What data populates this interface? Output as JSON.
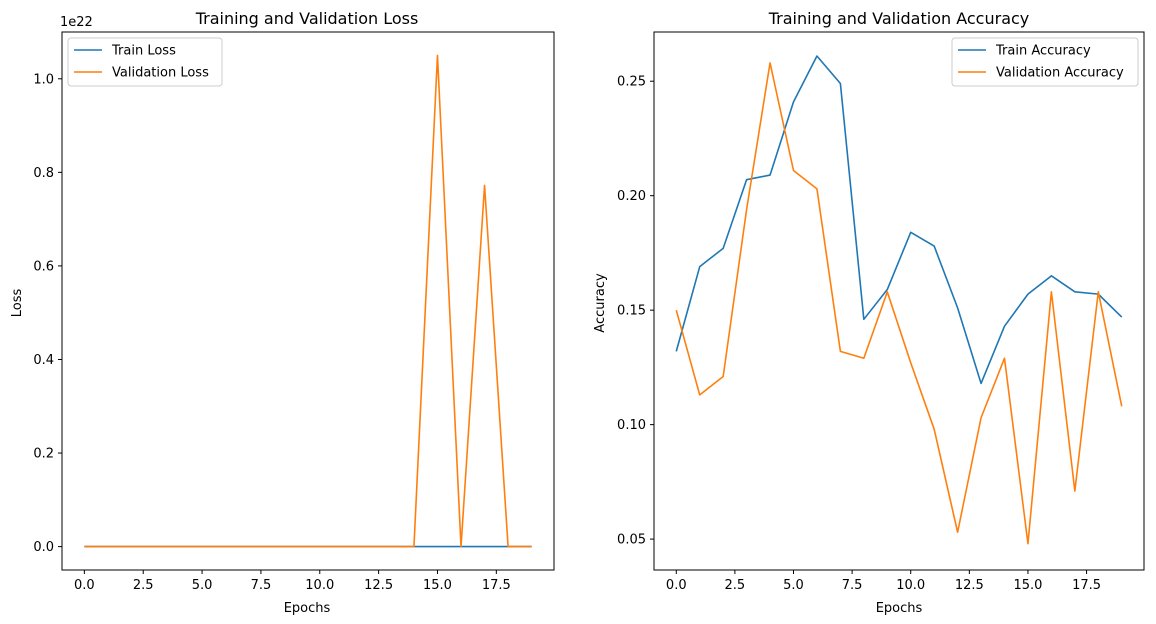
{
  "chart_data": [
    {
      "type": "line",
      "title": "Training and Validation Loss",
      "xlabel": "Epochs",
      "ylabel": "Loss",
      "offset_label": "1e22",
      "xlim": [
        -0.95,
        19.95
      ],
      "ylim": [
        -0.05,
        1.1
      ],
      "xticks": [
        0,
        2.5,
        5,
        7.5,
        10,
        12.5,
        15,
        17.5
      ],
      "xtick_labels": [
        "0.0",
        "2.5",
        "5.0",
        "7.5",
        "10.0",
        "12.5",
        "15.0",
        "17.5"
      ],
      "yticks": [
        0,
        0.2,
        0.4,
        0.6,
        0.8,
        1.0
      ],
      "ytick_labels": [
        "0.0",
        "0.2",
        "0.4",
        "0.6",
        "0.8",
        "1.0"
      ],
      "legend_position": "upper-left",
      "x": [
        0,
        1,
        2,
        3,
        4,
        5,
        6,
        7,
        8,
        9,
        10,
        11,
        12,
        13,
        14,
        15,
        16,
        17,
        18,
        19
      ],
      "series": [
        {
          "name": "Train Loss",
          "color": "#1f77b4",
          "values": [
            0,
            0,
            0,
            0,
            0,
            0,
            0,
            0,
            0,
            0,
            0,
            0,
            0,
            0,
            0,
            0,
            0,
            0,
            0,
            0
          ]
        },
        {
          "name": "Validation Loss",
          "color": "#ff7f0e",
          "values": [
            0,
            0,
            0,
            0,
            0,
            0,
            0,
            0,
            0,
            0,
            0,
            0,
            0,
            0,
            0,
            1.05,
            0,
            0.772,
            0,
            0
          ]
        }
      ]
    },
    {
      "type": "line",
      "title": "Training and Validation Accuracy",
      "xlabel": "Epochs",
      "ylabel": "Accuracy",
      "xlim": [
        -0.95,
        19.95
      ],
      "ylim": [
        0.0365,
        0.2715
      ],
      "xticks": [
        0,
        2.5,
        5,
        7.5,
        10,
        12.5,
        15,
        17.5
      ],
      "xtick_labels": [
        "0.0",
        "2.5",
        "5.0",
        "7.5",
        "10.0",
        "12.5",
        "15.0",
        "17.5"
      ],
      "yticks": [
        0.05,
        0.1,
        0.15,
        0.2,
        0.25
      ],
      "ytick_labels": [
        "0.05",
        "0.10",
        "0.15",
        "0.20",
        "0.25"
      ],
      "legend_position": "upper-right",
      "x": [
        0,
        1,
        2,
        3,
        4,
        5,
        6,
        7,
        8,
        9,
        10,
        11,
        12,
        13,
        14,
        15,
        16,
        17,
        18,
        19
      ],
      "series": [
        {
          "name": "Train Accuracy",
          "color": "#1f77b4",
          "values": [
            0.132,
            0.169,
            0.177,
            0.207,
            0.209,
            0.241,
            0.261,
            0.249,
            0.146,
            0.159,
            0.184,
            0.178,
            0.151,
            0.118,
            0.143,
            0.157,
            0.165,
            0.158,
            0.157,
            0.147
          ]
        },
        {
          "name": "Validation Accuracy",
          "color": "#ff7f0e",
          "values": [
            0.15,
            0.113,
            0.121,
            0.194,
            0.258,
            0.211,
            0.203,
            0.132,
            0.129,
            0.158,
            0.127,
            0.098,
            0.053,
            0.103,
            0.129,
            0.048,
            0.158,
            0.071,
            0.158,
            0.108
          ]
        }
      ]
    }
  ]
}
